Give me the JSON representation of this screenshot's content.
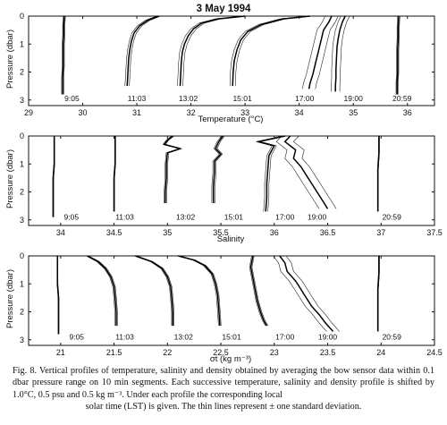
{
  "chart_data": [
    {
      "type": "line",
      "title": "3 May 1994",
      "xlabel": "Temperature (°C)",
      "ylabel": "Pressure (dbar)",
      "xlim": [
        29,
        36.5
      ],
      "ylim": [
        3.2,
        0
      ],
      "xticks": [
        "29",
        "30",
        "31",
        "32",
        "33",
        "34",
        "35",
        "36"
      ],
      "yticks": [
        "0",
        "1",
        "2",
        "3"
      ],
      "profile_labels": [
        {
          "text": "9:05",
          "x": 29.8,
          "y": 2.95
        },
        {
          "text": "11:03",
          "x": 31.0,
          "y": 2.95
        },
        {
          "text": "13:02",
          "x": 31.95,
          "y": 2.95
        },
        {
          "text": "15:01",
          "x": 32.95,
          "y": 2.95
        },
        {
          "text": "17:00",
          "x": 34.1,
          "y": 2.95
        },
        {
          "text": "19:00",
          "x": 35.0,
          "y": 2.95
        },
        {
          "text": "20:59",
          "x": 35.9,
          "y": 2.95
        }
      ],
      "series": [
        {
          "time": "9:05",
          "sd": 0.02,
          "x": [
            29.66,
            29.65,
            29.65,
            29.64,
            29.64,
            29.64,
            29.63,
            29.63,
            29.63
          ],
          "y": [
            0.0,
            0.3,
            0.7,
            1.0,
            1.4,
            1.8,
            2.2,
            2.6,
            2.8
          ]
        },
        {
          "time": "11:03",
          "sd": 0.04,
          "x": [
            31.4,
            31.2,
            31.05,
            30.95,
            30.9,
            30.87,
            30.85,
            30.84,
            30.83,
            30.82
          ],
          "y": [
            0.0,
            0.15,
            0.35,
            0.6,
            0.9,
            1.2,
            1.5,
            1.8,
            2.2,
            2.5
          ]
        },
        {
          "time": "13:02",
          "sd": 0.05,
          "x": [
            33.0,
            32.5,
            32.2,
            32.05,
            31.95,
            31.88,
            31.84,
            31.82,
            31.81,
            31.8
          ],
          "y": [
            0.0,
            0.1,
            0.25,
            0.45,
            0.7,
            1.0,
            1.3,
            1.7,
            2.1,
            2.5
          ]
        },
        {
          "time": "15:01",
          "sd": 0.05,
          "x": [
            34.2,
            33.7,
            33.3,
            33.05,
            32.92,
            32.85,
            32.8,
            32.78,
            32.77
          ],
          "y": [
            0.0,
            0.1,
            0.3,
            0.55,
            0.85,
            1.2,
            1.6,
            2.0,
            2.5
          ]
        },
        {
          "time": "17:00",
          "sd": 0.12,
          "x": [
            34.6,
            34.55,
            34.45,
            34.4,
            34.35,
            34.3,
            34.25,
            34.2,
            34.18
          ],
          "y": [
            0.0,
            0.2,
            0.5,
            0.9,
            1.3,
            1.7,
            2.1,
            2.4,
            2.6
          ]
        },
        {
          "time": "19:00",
          "sd": 0.08,
          "x": [
            34.85,
            34.8,
            34.75,
            34.72,
            34.7,
            34.69,
            34.68,
            34.68,
            34.67,
            34.67
          ],
          "y": [
            0.0,
            0.2,
            0.5,
            0.8,
            1.1,
            1.5,
            1.9,
            2.2,
            2.5,
            2.7
          ]
        },
        {
          "time": "20:59",
          "sd": 0.02,
          "x": [
            35.84,
            35.83,
            35.83,
            35.82,
            35.82,
            35.82,
            35.81,
            35.81
          ],
          "y": [
            0.0,
            0.4,
            0.8,
            1.2,
            1.6,
            2.0,
            2.4,
            2.8
          ]
        }
      ]
    },
    {
      "type": "line",
      "title": "",
      "xlabel": "Salinity",
      "ylabel": "Pressure (dbar)",
      "xlim": [
        33.7,
        37.5
      ],
      "ylim": [
        3.2,
        0
      ],
      "xticks": [
        "34",
        "34.5",
        "35",
        "35.5",
        "36",
        "36.5",
        "37",
        "37.5"
      ],
      "yticks": [
        "0",
        "1",
        "2",
        "3"
      ],
      "profile_labels": [
        {
          "text": "9:05",
          "x": 34.1,
          "y": 2.9
        },
        {
          "text": "11:03",
          "x": 34.6,
          "y": 2.9
        },
        {
          "text": "13:02",
          "x": 35.17,
          "y": 2.9
        },
        {
          "text": "15:01",
          "x": 35.62,
          "y": 2.9
        },
        {
          "text": "17:00",
          "x": 36.1,
          "y": 2.9
        },
        {
          "text": "19:00",
          "x": 36.4,
          "y": 2.9
        },
        {
          "text": "20:59",
          "x": 37.1,
          "y": 2.9
        }
      ],
      "series": [
        {
          "time": "9:05",
          "sd": 0.004,
          "x": [
            33.94,
            33.94,
            33.94,
            33.93,
            33.93,
            33.93,
            33.93
          ],
          "y": [
            0.0,
            0.5,
            1.0,
            1.5,
            2.0,
            2.5,
            2.9
          ]
        },
        {
          "time": "11:03",
          "sd": 0.004,
          "x": [
            34.51,
            34.51,
            34.51,
            34.5,
            34.5,
            34.5,
            34.5
          ],
          "y": [
            0.0,
            0.5,
            1.0,
            1.5,
            2.0,
            2.5,
            2.7
          ]
        },
        {
          "time": "13:02",
          "sd": 0.012,
          "x": [
            35.05,
            35.0,
            34.97,
            35.12,
            35.0,
            34.99,
            34.99,
            34.98,
            34.98
          ],
          "y": [
            0.0,
            0.15,
            0.3,
            0.45,
            0.6,
            1.0,
            1.5,
            2.0,
            2.4
          ]
        },
        {
          "time": "15:01",
          "sd": 0.015,
          "x": [
            35.52,
            35.48,
            35.45,
            35.5,
            35.44,
            35.44,
            35.43,
            35.43
          ],
          "y": [
            0.0,
            0.2,
            0.45,
            0.65,
            0.9,
            1.3,
            1.8,
            2.4
          ]
        },
        {
          "time": "17:00",
          "sd": 0.02,
          "x": [
            36.1,
            35.85,
            36.0,
            35.95,
            35.94,
            35.93,
            35.93,
            35.92
          ],
          "y": [
            0.0,
            0.2,
            0.35,
            0.7,
            1.2,
            1.7,
            2.2,
            2.7
          ]
        },
        {
          "time": "19:00",
          "sd": 0.08,
          "x": [
            36.15,
            36.1,
            36.2,
            36.18,
            36.25,
            36.3,
            36.35,
            36.4,
            36.45,
            36.5
          ],
          "y": [
            0.0,
            0.2,
            0.5,
            0.8,
            1.1,
            1.4,
            1.7,
            2.0,
            2.3,
            2.6
          ]
        },
        {
          "time": "20:59",
          "sd": 0.004,
          "x": [
            36.98,
            36.98,
            36.97,
            36.97,
            36.97,
            36.97
          ],
          "y": [
            0.0,
            0.6,
            1.2,
            1.8,
            2.4,
            2.7
          ]
        }
      ]
    },
    {
      "type": "line",
      "title": "",
      "xlabel": "σt (kg m⁻³)",
      "ylabel": "Pressure (dbar)",
      "xlim": [
        20.7,
        24.5
      ],
      "ylim": [
        3.2,
        0
      ],
      "xticks": [
        "21",
        "21.5",
        "22",
        "22.5",
        "23",
        "23.5",
        "24",
        "24.5"
      ],
      "yticks": [
        "0",
        "1",
        "2",
        "3"
      ],
      "profile_labels": [
        {
          "text": "9:05",
          "x": 21.15,
          "y": 2.9
        },
        {
          "text": "11:03",
          "x": 21.6,
          "y": 2.9
        },
        {
          "text": "13:02",
          "x": 22.15,
          "y": 2.9
        },
        {
          "text": "15:01",
          "x": 22.6,
          "y": 2.9
        },
        {
          "text": "17:00",
          "x": 23.1,
          "y": 2.9
        },
        {
          "text": "19:00",
          "x": 23.5,
          "y": 2.9
        },
        {
          "text": "20:59",
          "x": 24.1,
          "y": 2.9
        }
      ],
      "series": [
        {
          "time": "9:05",
          "sd": 0.004,
          "x": [
            20.97,
            20.97,
            20.97,
            20.98,
            20.98,
            20.98,
            20.98
          ],
          "y": [
            0.0,
            0.5,
            1.0,
            1.5,
            2.0,
            2.5,
            2.8
          ]
        },
        {
          "time": "11:03",
          "sd": 0.012,
          "x": [
            21.25,
            21.35,
            21.42,
            21.47,
            21.5,
            21.51,
            21.52,
            21.52
          ],
          "y": [
            0.0,
            0.2,
            0.45,
            0.75,
            1.1,
            1.5,
            2.0,
            2.5
          ]
        },
        {
          "time": "13:02",
          "sd": 0.012,
          "x": [
            21.7,
            21.85,
            21.95,
            22.0,
            22.03,
            22.04,
            22.05,
            22.05
          ],
          "y": [
            0.0,
            0.2,
            0.45,
            0.75,
            1.1,
            1.5,
            2.0,
            2.5
          ]
        },
        {
          "time": "15:01",
          "sd": 0.012,
          "x": [
            22.1,
            22.25,
            22.35,
            22.42,
            22.45,
            22.47,
            22.48,
            22.49
          ],
          "y": [
            0.0,
            0.15,
            0.35,
            0.65,
            1.0,
            1.4,
            1.9,
            2.5
          ]
        },
        {
          "time": "17:00",
          "sd": 0.012,
          "x": [
            22.8,
            22.78,
            22.8,
            22.82,
            22.84,
            22.87,
            22.9,
            22.93
          ],
          "y": [
            0.0,
            0.4,
            0.8,
            1.2,
            1.6,
            2.0,
            2.3,
            2.5
          ]
        },
        {
          "time": "19:00",
          "sd": 0.06,
          "x": [
            23.05,
            23.1,
            23.12,
            23.2,
            23.25,
            23.3,
            23.35,
            23.42,
            23.48,
            23.55
          ],
          "y": [
            0.0,
            0.25,
            0.55,
            0.9,
            1.2,
            1.5,
            1.8,
            2.1,
            2.4,
            2.7
          ]
        },
        {
          "time": "20:59",
          "sd": 0.004,
          "x": [
            23.98,
            23.98,
            23.97,
            23.97,
            23.97,
            23.97
          ],
          "y": [
            0.0,
            0.6,
            1.2,
            1.8,
            2.4,
            2.7
          ]
        }
      ]
    }
  ],
  "caption": {
    "label": "Fig. 8.",
    "body": "Vertical profiles of temperature, salinity and density obtained by averaging the bow sensor data within 0.1 dbar pressure range on 10 min segments. Each successive temperature, salinity and density profile is shifted by 1.0°C, 0.5 psu and 0.5 kg m⁻³. Under each profile the corresponding local",
    "last_line": "solar time (LST) is given. The thin lines represent ± one standard deviation."
  }
}
